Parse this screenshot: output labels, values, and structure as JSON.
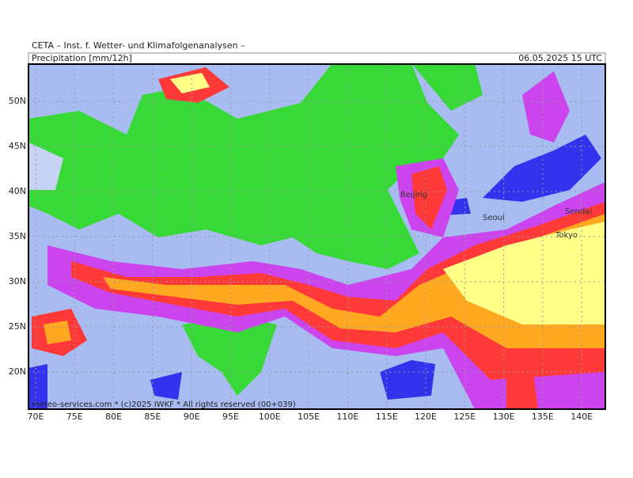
{
  "header": {
    "title": "CETA – Inst. f. Wetter- und Klimafolgenanalysen –",
    "variable": "Precipitation [mm/12h]",
    "valid_time": "06.05.2025 15 UTC"
  },
  "map": {
    "latitude_labels": [
      "50N",
      "45N",
      "40N",
      "35N",
      "30N",
      "25N",
      "20N"
    ],
    "longitude_labels": [
      "70E",
      "75E",
      "80E",
      "85E",
      "90E",
      "95E",
      "100E",
      "105E",
      "110E",
      "115E",
      "120E",
      "125E",
      "130E",
      "135E",
      "140E"
    ],
    "cities": [
      "Beijing",
      "Seoul",
      "Sendai",
      "Tokyo"
    ],
    "credit": "meteo-services.com * (c)2025 IWKF * All rights reserved (00+039)"
  }
}
